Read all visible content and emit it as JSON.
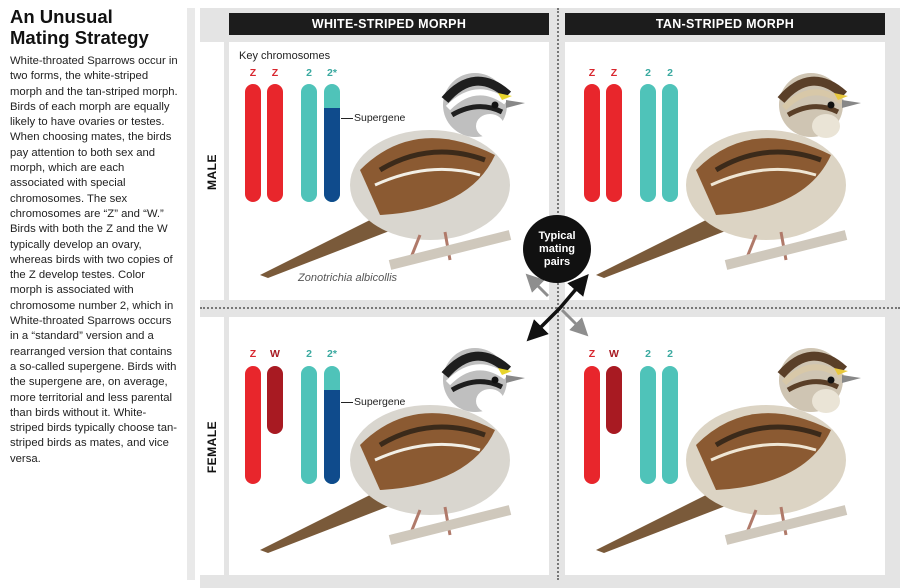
{
  "title_line1": "An Unusual",
  "title_line2": "Mating Strategy",
  "body": "White-throated Sparrows occur in two forms, the white-striped morph and the tan-striped morph. Birds of each morph are equally likely to have ovaries or testes. When choosing mates, the birds pay attention to both sex and morph, which are each associated with special chromosomes. The sex chromosomes are “Z” and “W.” Birds with both the Z and the W typically develop an ovary, whereas birds with two copies of the Z develop testes. Color morph is associated with chromosome number 2, which in White-throated Sparrows occurs in a “standard” version and a rearranged version that contains a so-called supergene. Birds with the supergene are, on average, more territorial and less parental than birds without it. White-striped birds typically choose tan-striped birds as mates, and vice versa.",
  "columns": [
    "WHITE-STRIPED MORPH",
    "TAN-STRIPED MORPH"
  ],
  "rows": [
    "MALE",
    "FEMALE"
  ],
  "key_label": "Key chromosomes",
  "supergene_label": "Supergene",
  "species_name": "Zonotrichia albicollis",
  "circle_label": [
    "Typical",
    "mating",
    "pairs"
  ],
  "panels": {
    "male_white": [
      "Z",
      "Z",
      "2",
      "2*"
    ],
    "male_tan": [
      "Z",
      "Z",
      "2",
      "2"
    ],
    "female_white": [
      "Z",
      "W",
      "2",
      "2*"
    ],
    "female_tan": [
      "Z",
      "W",
      "2",
      "2"
    ]
  },
  "colors": {
    "z_red": "#e8262c",
    "w_dark_red": "#a81a22",
    "chr2_teal": "#4fc3b9",
    "supergene_blue": "#0f4b8c",
    "label_red": "#d8262e",
    "label_teal": "#3aa9a0"
  }
}
